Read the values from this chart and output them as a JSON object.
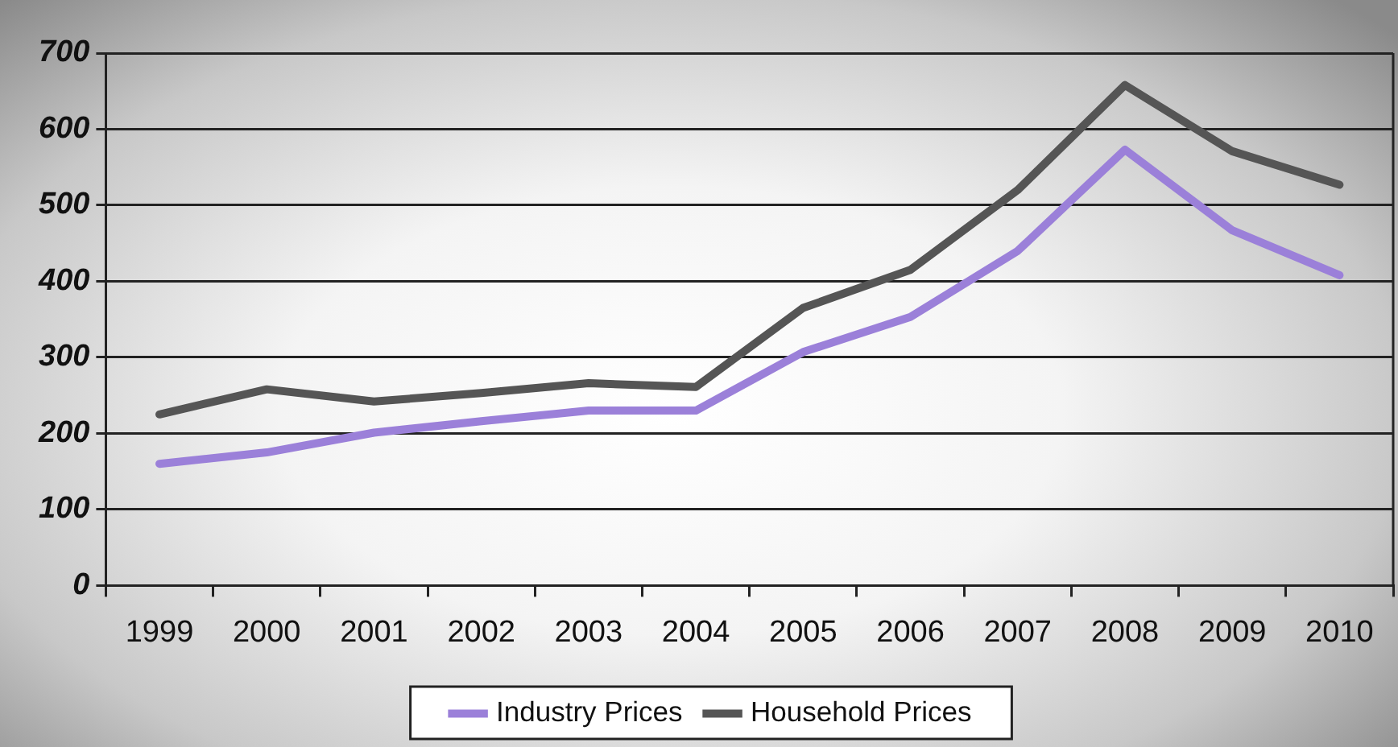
{
  "chart_data": {
    "type": "line",
    "categories": [
      "1999",
      "2000",
      "2001",
      "2002",
      "2003",
      "2004",
      "2005",
      "2006",
      "2007",
      "2008",
      "2009",
      "2010"
    ],
    "series": [
      {
        "name": "Industry Prices",
        "color": "#9b80d9",
        "values": [
          160,
          175,
          201,
          216,
          230,
          230,
          307,
          353,
          440,
          573,
          467,
          408
        ]
      },
      {
        "name": "Household Prices",
        "color": "#555555",
        "values": [
          225,
          258,
          242,
          253,
          266,
          261,
          365,
          415,
          520,
          658,
          571,
          527
        ]
      }
    ],
    "ylim": [
      0,
      700
    ],
    "yticks": [
      0,
      100,
      200,
      300,
      400,
      500,
      600,
      700
    ],
    "grid": "y",
    "legend": "bottom",
    "marker": "none",
    "line_style": "solid"
  }
}
